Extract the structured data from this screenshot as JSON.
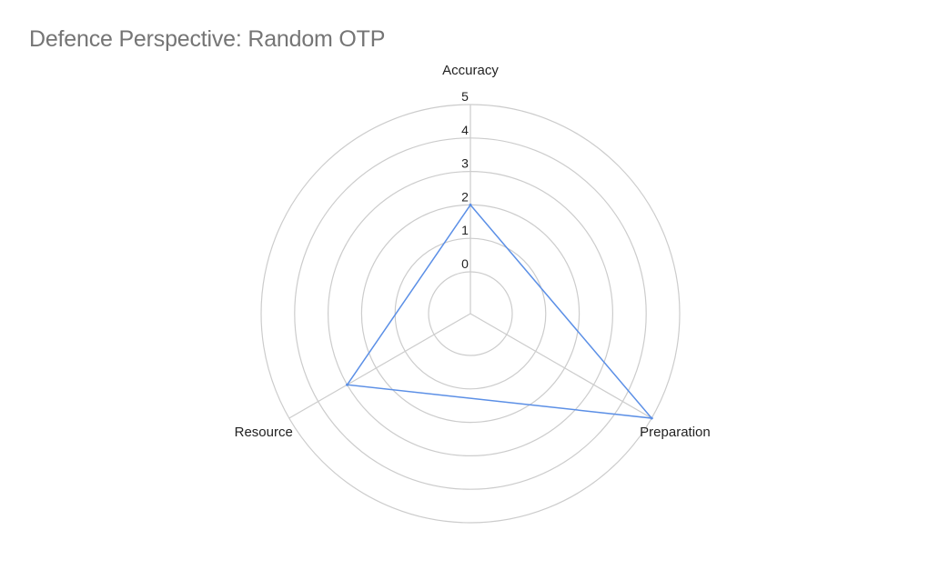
{
  "chart_data": {
    "type": "radar",
    "title": "Defence Perspective: Random OTP",
    "axes": [
      "Accuracy",
      "Preparation",
      "Resource"
    ],
    "radial_ticks": [
      "0",
      "1",
      "2",
      "3",
      "4",
      "5"
    ],
    "rlim": [
      0,
      5
    ],
    "grid": true,
    "legend": "none",
    "series": [
      {
        "values": [
          2,
          5,
          3
        ],
        "color": "#5b8fe6"
      }
    ]
  },
  "colors": {
    "title": "#757575",
    "grid": "#cccccc",
    "text": "#222222",
    "series": "#5b8fe6"
  }
}
